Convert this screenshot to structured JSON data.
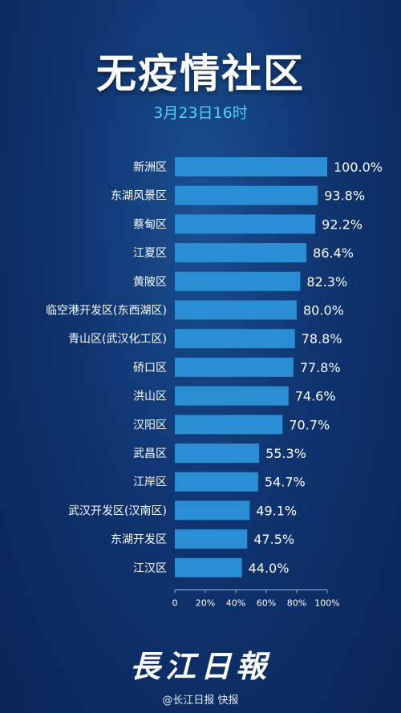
{
  "header": {
    "title": "无疫情社区",
    "subtitle": "3月23日16时"
  },
  "footer": {
    "logo": "長江日報",
    "source": "@长江日报 快报"
  },
  "colors": {
    "bar": "#2a8ed4",
    "subtitle": "#52d0f5",
    "background": "#0f3470"
  },
  "chart_data": {
    "type": "bar",
    "orientation": "horizontal",
    "categories": [
      "新洲区",
      "东湖风景区",
      "蔡甸区",
      "江夏区",
      "黄陂区",
      "临空港开发区(东西湖区)",
      "青山区(武汉化工区)",
      "硚口区",
      "洪山区",
      "汉阳区",
      "武昌区",
      "江岸区",
      "武汉开发区(汉南区)",
      "东湖开发区",
      "江汉区"
    ],
    "values": [
      100.0,
      93.8,
      92.2,
      86.4,
      82.3,
      80.0,
      78.8,
      77.8,
      74.6,
      70.7,
      55.3,
      54.7,
      49.1,
      47.5,
      44.0
    ],
    "value_labels": [
      "100.0%",
      "93.8%",
      "92.2%",
      "86.4%",
      "82.3%",
      "80.0%",
      "78.8%",
      "77.8%",
      "74.6%",
      "70.7%",
      "55.3%",
      "54.7%",
      "49.1%",
      "47.5%",
      "44.0%"
    ],
    "xlim": [
      0,
      100
    ],
    "x_ticks": [
      "0",
      "20%",
      "40%",
      "60%",
      "80%",
      "100%"
    ],
    "grid": false,
    "legend": "none"
  }
}
